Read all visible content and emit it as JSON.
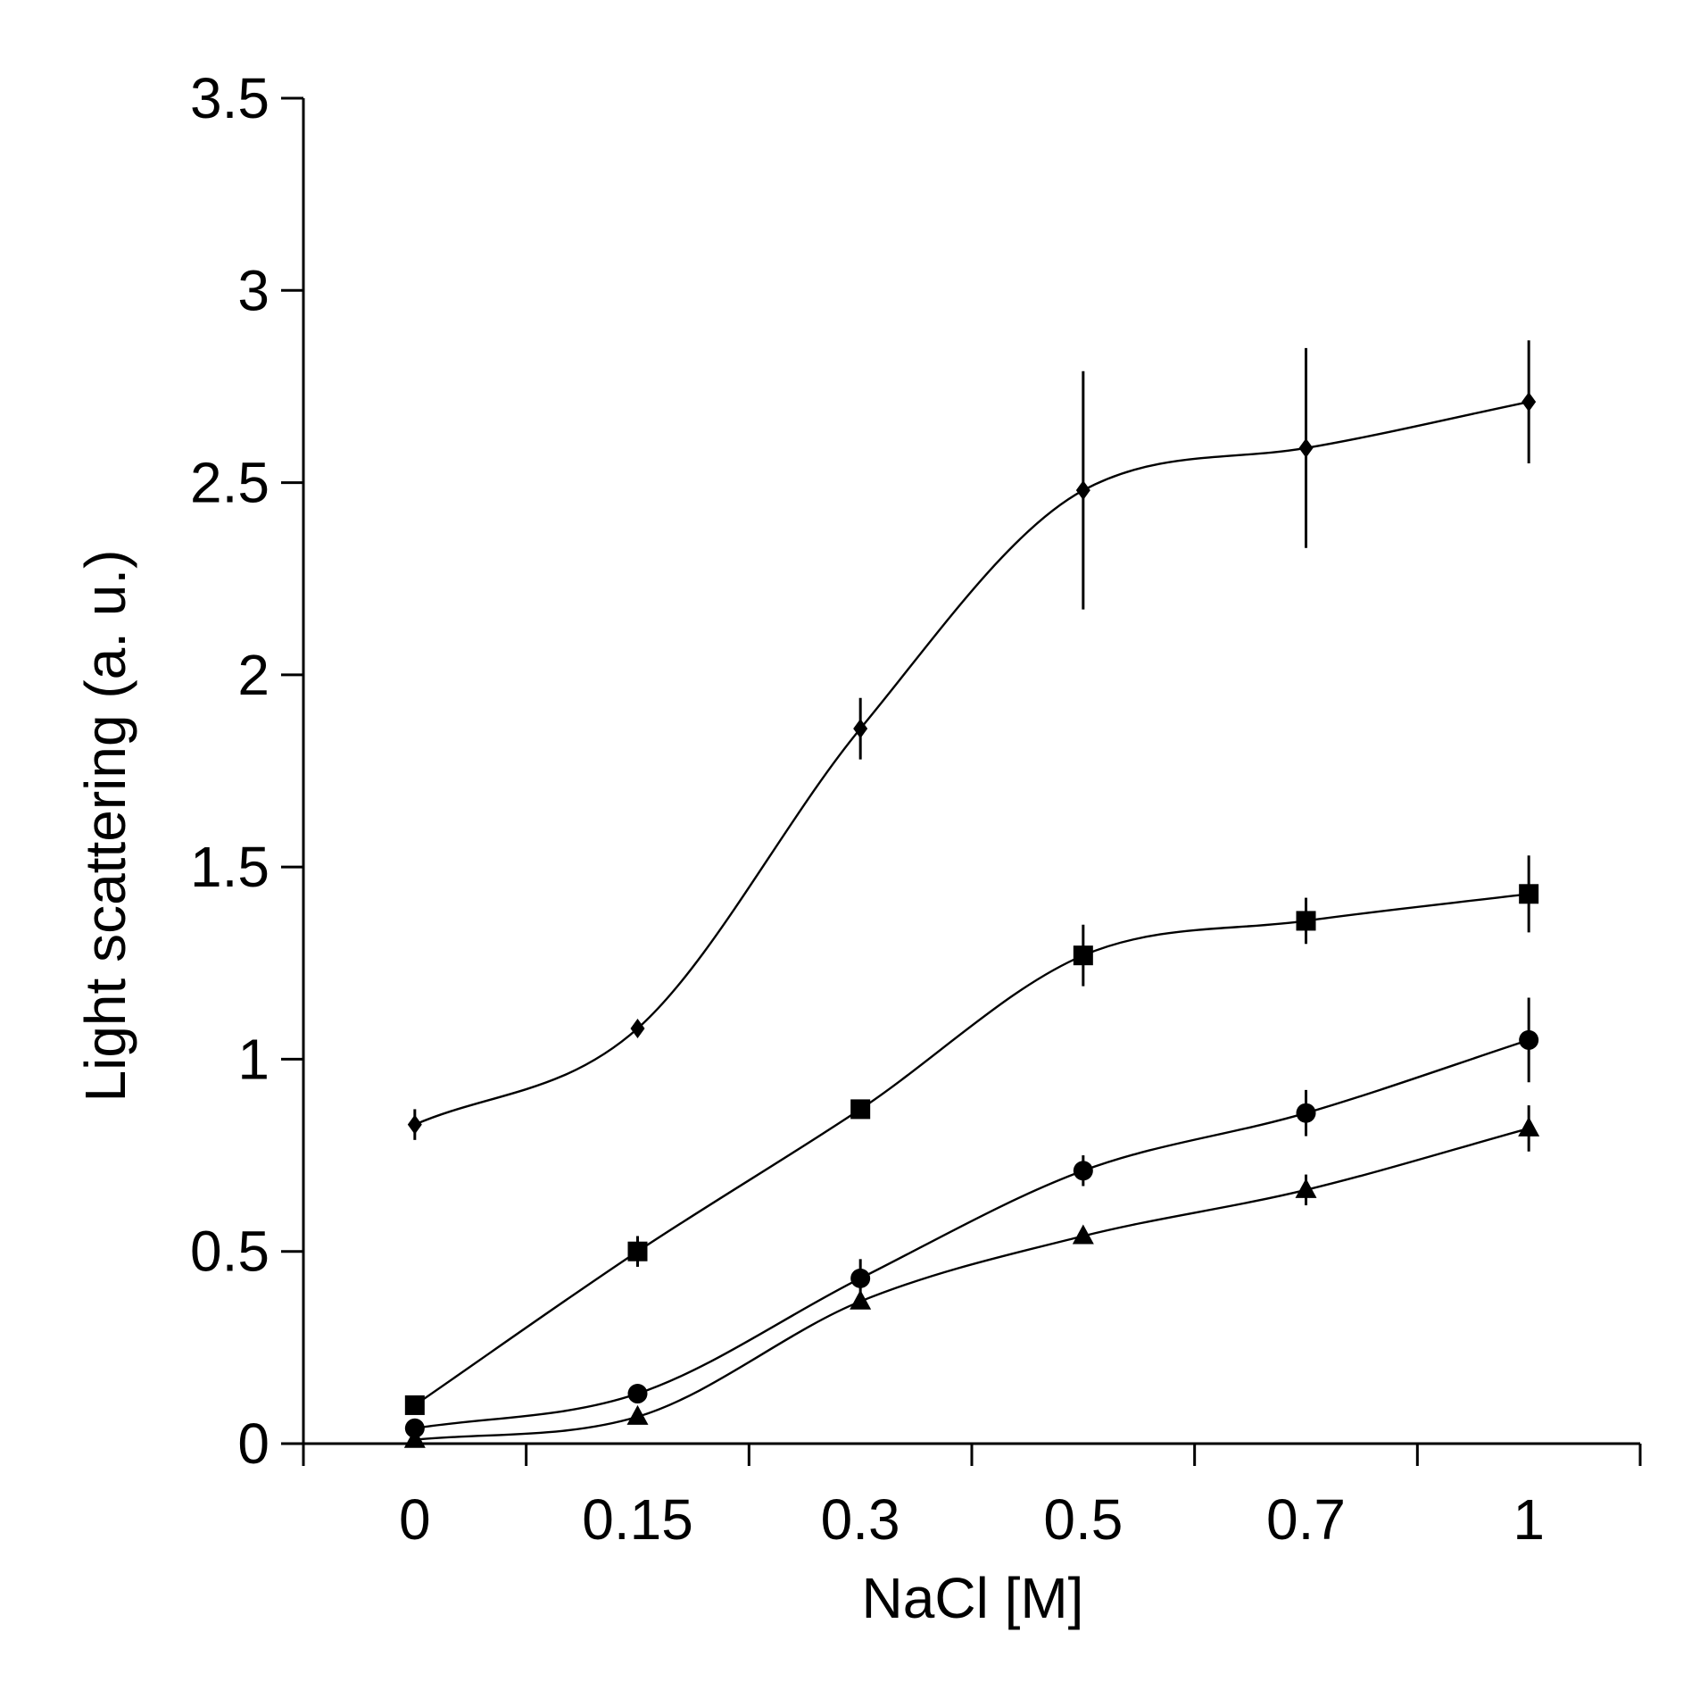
{
  "chart_data": {
    "type": "line",
    "title": "",
    "xlabel": "NaCl [M]",
    "ylabel": "Light scattering (a. u.)",
    "categories": [
      "0",
      "0.15",
      "0.3",
      "0.5",
      "0.7",
      "1"
    ],
    "ylim": [
      0,
      3.5
    ],
    "yticks": [
      "0",
      "0.5",
      "1",
      "1.5",
      "2",
      "2.5",
      "3",
      "3.5"
    ],
    "grid": false,
    "legend": "none",
    "series": [
      {
        "name": "diamond",
        "marker": "diamond",
        "values": [
          0.83,
          1.08,
          1.86,
          2.48,
          2.59,
          2.71
        ],
        "errors": [
          0.04,
          0.02,
          0.08,
          0.31,
          0.26,
          0.16
        ]
      },
      {
        "name": "square",
        "marker": "square",
        "values": [
          0.1,
          0.5,
          0.87,
          1.27,
          1.36,
          1.43
        ],
        "errors": [
          0.0,
          0.04,
          0.0,
          0.08,
          0.06,
          0.1
        ]
      },
      {
        "name": "circle",
        "marker": "circle",
        "values": [
          0.04,
          0.13,
          0.43,
          0.71,
          0.86,
          1.05
        ],
        "errors": [
          0.0,
          0.0,
          0.05,
          0.04,
          0.06,
          0.11
        ]
      },
      {
        "name": "triangle",
        "marker": "triangle",
        "values": [
          0.01,
          0.07,
          0.37,
          0.54,
          0.66,
          0.82
        ],
        "errors": [
          0.0,
          0.0,
          0.0,
          0.0,
          0.04,
          0.06
        ]
      }
    ]
  }
}
